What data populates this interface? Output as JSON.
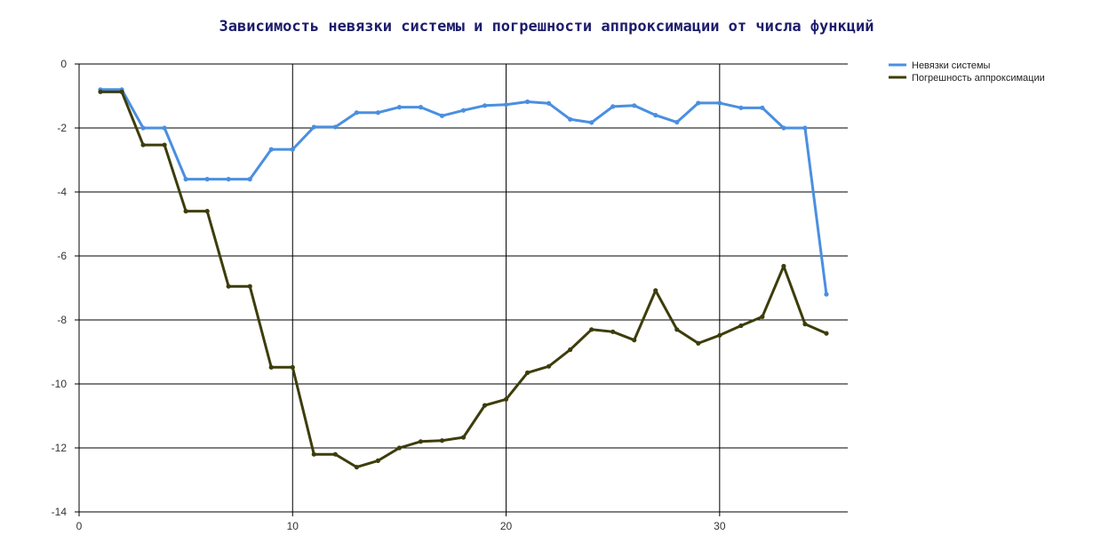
{
  "chart_data": {
    "type": "line",
    "title": "Зависимость невязки системы и погрешности аппроксимации от числа функций",
    "xlabel": "",
    "ylabel": "",
    "xlim": [
      0,
      36
    ],
    "ylim": [
      -14,
      0
    ],
    "x_ticks": [
      0,
      10,
      20,
      30
    ],
    "y_ticks": [
      0,
      -2,
      -4,
      -6,
      -8,
      -10,
      -12,
      -14
    ],
    "x_tick_labels": [
      "0",
      "10",
      "20",
      "30"
    ],
    "y_tick_labels": [
      "0",
      "-2",
      "-4",
      "-6",
      "-8",
      "-10",
      "-12",
      "-14"
    ],
    "grid": true,
    "legend_position": "top-right",
    "x": [
      1,
      2,
      3,
      4,
      5,
      6,
      7,
      8,
      9,
      10,
      11,
      12,
      13,
      14,
      15,
      16,
      17,
      18,
      19,
      20,
      21,
      22,
      23,
      24,
      25,
      26,
      27,
      28,
      29,
      30,
      31,
      32,
      33,
      34,
      35
    ],
    "series": [
      {
        "name": "Невязки системы",
        "color": "#4a8fe0",
        "values": [
          -0.8,
          -0.8,
          -2.0,
          -2.0,
          -3.6,
          -3.6,
          -3.6,
          -3.6,
          -2.67,
          -2.67,
          -1.97,
          -1.97,
          -1.52,
          -1.52,
          -1.35,
          -1.35,
          -1.62,
          -1.45,
          -1.3,
          -1.27,
          -1.18,
          -1.23,
          -1.73,
          -1.83,
          -1.33,
          -1.3,
          -1.6,
          -1.82,
          -1.22,
          -1.22,
          -1.37,
          -1.37,
          -2.0,
          -2.0,
          -7.2
        ]
      },
      {
        "name": "Погрешность аппроксимации",
        "color": "#3d3d0c",
        "values": [
          -0.87,
          -0.87,
          -2.53,
          -2.53,
          -4.6,
          -4.6,
          -6.95,
          -6.95,
          -9.48,
          -9.48,
          -12.2,
          -12.2,
          -12.6,
          -12.4,
          -12.0,
          -11.8,
          -11.77,
          -11.67,
          -10.67,
          -10.48,
          -9.65,
          -9.45,
          -8.93,
          -8.3,
          -8.37,
          -8.63,
          -7.08,
          -8.3,
          -8.73,
          -8.48,
          -8.18,
          -7.9,
          -6.32,
          -8.13,
          -8.42
        ]
      }
    ]
  }
}
